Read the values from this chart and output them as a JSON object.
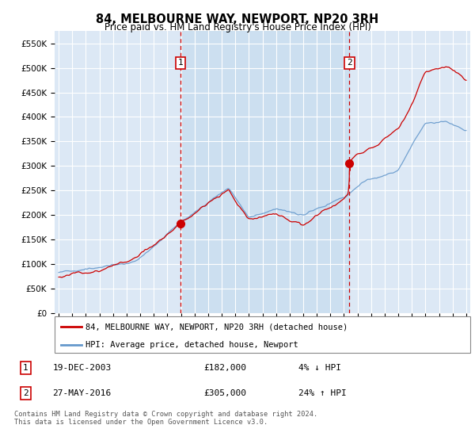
{
  "title": "84, MELBOURNE WAY, NEWPORT, NP20 3RH",
  "subtitle": "Price paid vs. HM Land Registry's House Price Index (HPI)",
  "plot_bg": "#dce8f5",
  "highlight_bg": "#ccdff0",
  "yticks": [
    0,
    50000,
    100000,
    150000,
    200000,
    250000,
    300000,
    350000,
    400000,
    450000,
    500000,
    550000
  ],
  "ytick_labels": [
    "£0",
    "£50K",
    "£100K",
    "£150K",
    "£200K",
    "£250K",
    "£300K",
    "£350K",
    "£400K",
    "£450K",
    "£500K",
    "£550K"
  ],
  "ylim": [
    0,
    575000
  ],
  "xlim_left": 1994.7,
  "xlim_right": 2025.3,
  "sale1_date": 2003.97,
  "sale1_price": 182000,
  "sale2_date": 2016.41,
  "sale2_price": 305000,
  "red_line_color": "#cc0000",
  "blue_line_color": "#6699cc",
  "grid_color": "#ffffff",
  "footer_text": "Contains HM Land Registry data © Crown copyright and database right 2024.\nThis data is licensed under the Open Government Licence v3.0.",
  "legend_label_red": "84, MELBOURNE WAY, NEWPORT, NP20 3RH (detached house)",
  "legend_label_blue": "HPI: Average price, detached house, Newport",
  "row1_num": "1",
  "row1_date": "19-DEC-2003",
  "row1_price": "£182,000",
  "row1_hpi": "4% ↓ HPI",
  "row2_num": "2",
  "row2_date": "27-MAY-2016",
  "row2_price": "£305,000",
  "row2_hpi": "24% ↑ HPI"
}
